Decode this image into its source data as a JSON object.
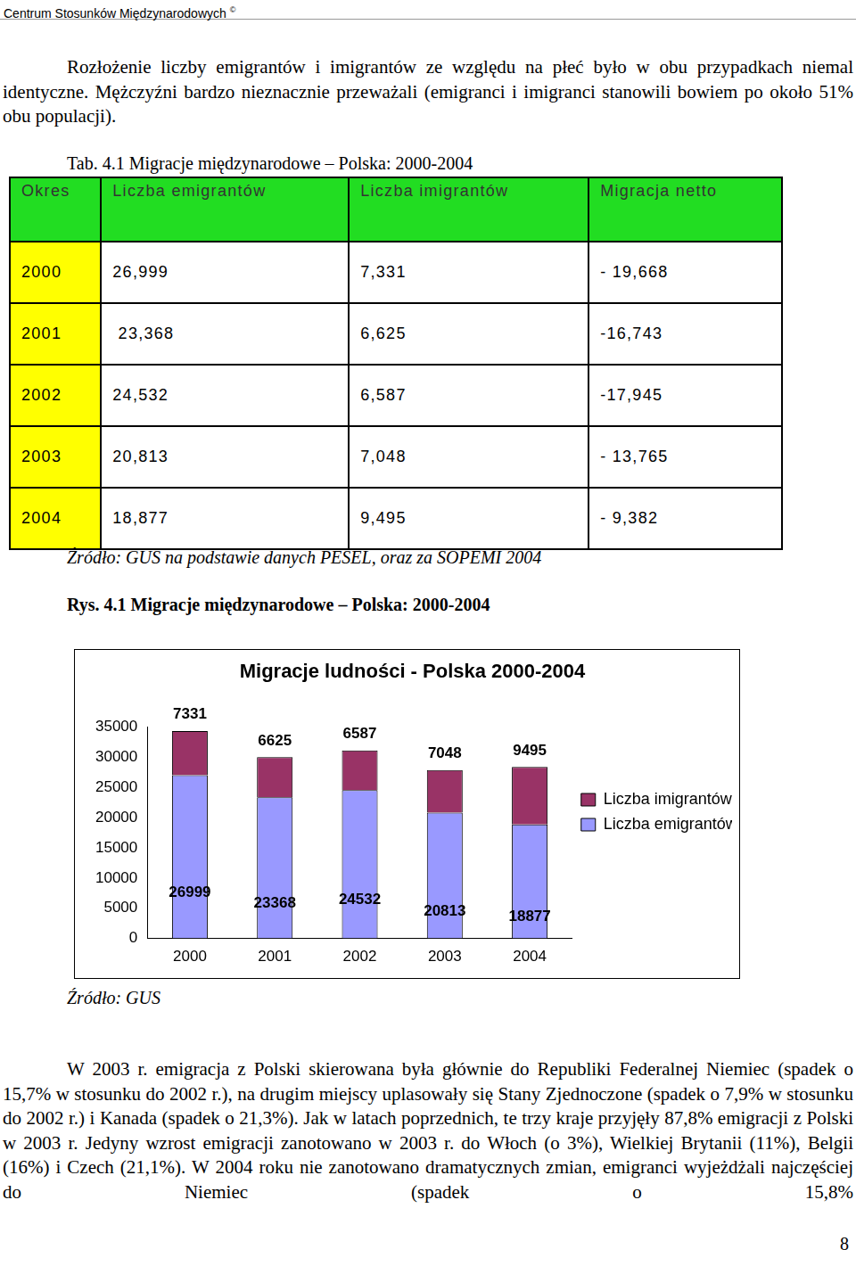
{
  "header": {
    "title": "Centrum Stosunków Międzynarodowych",
    "symbol": "©"
  },
  "intro_paragraph": "Rozłożenie liczby emigrantów i imigrantów ze względu na płeć było w obu przypadkach niemal identyczne. Mężczyźni bardzo nieznacznie przeważali (emigranci i imigranci stanowili bowiem po około 51% obu populacji).",
  "table": {
    "caption": "Tab. 4.1 Migracje międzynarodowe – Polska: 2000-2004",
    "columns": [
      "Okres",
      "Liczba emigrantów",
      "Liczba imigrantów",
      "Migracja netto"
    ],
    "rows": [
      [
        "2000",
        "26,999",
        "7,331",
        "- 19,668"
      ],
      [
        "2001",
        " 23,368",
        "6,625",
        "-16,743"
      ],
      [
        "2002",
        "24,532",
        "6,587",
        "-17,945"
      ],
      [
        "2003",
        "20,813",
        "7,048",
        "- 13,765"
      ],
      [
        "2004",
        "18,877",
        "9,495",
        "- 9,382"
      ]
    ],
    "source": "Źródło: GUS na podstawie danych PESEL, oraz za SOPEMI 2004"
  },
  "figure": {
    "caption": "Rys. 4.1 Migracje międzynarodowe – Polska: 2000-2004",
    "source": "Źródło: GUS"
  },
  "chart_data": {
    "type": "bar",
    "title": "Migracje ludności - Polska 2000-2004",
    "categories": [
      "2000",
      "2001",
      "2002",
      "2003",
      "2004"
    ],
    "series": [
      {
        "name": "Liczba emigrantów",
        "color": "#9999ff",
        "values": [
          26999,
          23368,
          24532,
          20813,
          18877
        ]
      },
      {
        "name": "Liczba imigrantów",
        "color": "#993366",
        "values": [
          7331,
          6625,
          6587,
          7048,
          9495
        ]
      }
    ],
    "stacked": true,
    "ylim": [
      0,
      35000
    ],
    "yticks": [
      0,
      5000,
      10000,
      15000,
      20000,
      25000,
      30000,
      35000
    ],
    "grid": false,
    "legend": "right",
    "data_labels": true
  },
  "closing_paragraph": "W 2003 r. emigracja z Polski skierowana była głównie do Republiki Federalnej Niemiec (spadek o 15,7% w stosunku do 2002 r.), na drugim miejscy uplasowały się Stany Zjednoczone (spadek o 7,9% w stosunku do 2002 r.) i Kanada (spadek o 21,3%). Jak w latach poprzednich, te trzy kraje przyjęły 87,8% emigracji z Polski w 2003 r. Jedyny wzrost emigracji zanotowano w 2003 r. do Włoch (o 3%), Wielkiej Brytanii (11%), Belgii (16%) i Czech (21,1%). W 2004 roku nie zanotowano dramatycznych zmian, emigranci wyjeżdżali najczęściej do Niemiec (spadek o 15,8%",
  "page_number": "8"
}
